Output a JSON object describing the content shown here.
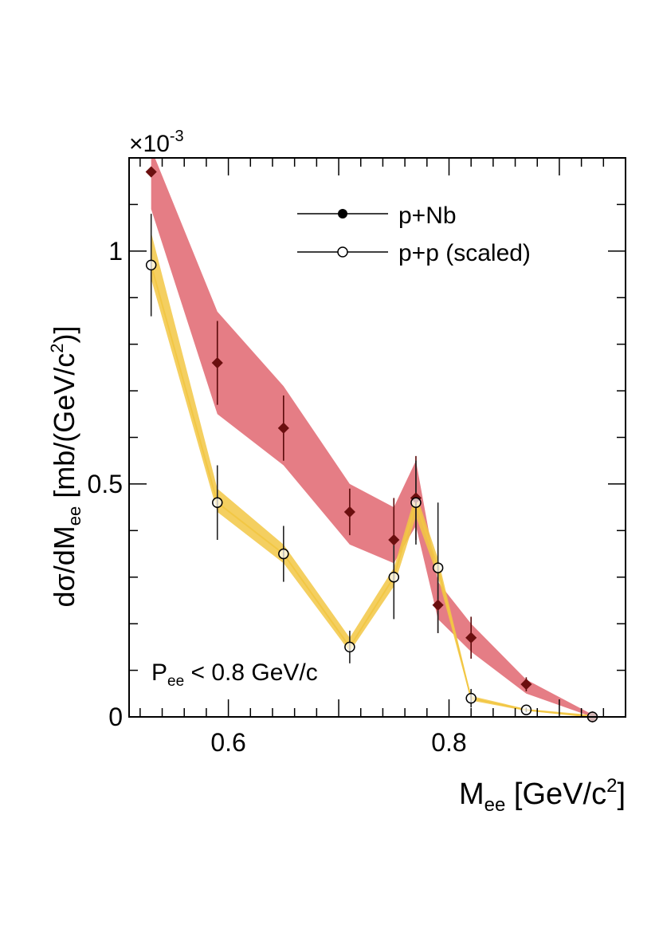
{
  "chart_data": {
    "type": "scatter",
    "exponent_label": "×10",
    "exponent_value": "-3",
    "ylabel": {
      "a": "dσ/dM",
      "sub": "ee",
      "b": " [mb/(GeV/c",
      "sup": "2",
      "c": ")]"
    },
    "xlabel": {
      "a": "M",
      "sub": "ee",
      "b": " [GeV/c",
      "sup": "2",
      "c": "]"
    },
    "annotation": {
      "a": "P",
      "sub": "ee",
      "b": " < 0.8 GeV/c"
    },
    "xlim": [
      0.51,
      0.96
    ],
    "ylim": [
      0,
      1.2
    ],
    "x_ticks": [
      {
        "value": 0.6,
        "label": "0.6"
      },
      {
        "value": 0.8,
        "label": "0.8"
      }
    ],
    "y_ticks": [
      {
        "value": 0,
        "label": "0"
      },
      {
        "value": 0.5,
        "label": "0.5"
      },
      {
        "value": 1.0,
        "label": "1"
      }
    ],
    "series": [
      {
        "name": "p+Nb",
        "legend_label": "p+Nb",
        "marker": "filled",
        "color": "#6b0f0f",
        "band_color": "#e06670",
        "x": [
          0.53,
          0.59,
          0.65,
          0.71,
          0.75,
          0.77,
          0.79,
          0.82,
          0.87,
          0.93
        ],
        "y": [
          1.17,
          0.76,
          0.62,
          0.44,
          0.38,
          0.47,
          0.24,
          0.17,
          0.07,
          0.0
        ],
        "err": [
          0.0,
          0.09,
          0.07,
          0.05,
          0.09,
          0.09,
          0.06,
          0.045,
          0.015,
          0.004
        ],
        "band_low": [
          1.09,
          0.65,
          0.54,
          0.37,
          0.33,
          0.41,
          0.21,
          0.14,
          0.05,
          0.0
        ],
        "band_high": [
          1.22,
          0.87,
          0.71,
          0.5,
          0.45,
          0.55,
          0.29,
          0.2,
          0.08,
          0.005
        ]
      },
      {
        "name": "p+p (scaled)",
        "legend_label": "p+p (scaled)",
        "marker": "open",
        "color": "#000000",
        "band_color": "#f2c744",
        "x": [
          0.53,
          0.59,
          0.65,
          0.71,
          0.75,
          0.77,
          0.79,
          0.82,
          0.87,
          0.93
        ],
        "y": [
          0.97,
          0.46,
          0.35,
          0.15,
          0.3,
          0.46,
          0.32,
          0.04,
          0.015,
          0.0
        ],
        "err": [
          0.11,
          0.08,
          0.06,
          0.035,
          0.09,
          0.09,
          0.14,
          0.02,
          0.005,
          0.003
        ],
        "band_low": [
          0.94,
          0.44,
          0.33,
          0.14,
          0.28,
          0.43,
          0.3,
          0.035,
          0.013,
          0.0
        ],
        "band_high": [
          1.04,
          0.49,
          0.37,
          0.17,
          0.32,
          0.48,
          0.34,
          0.045,
          0.017,
          0.004
        ]
      }
    ]
  }
}
